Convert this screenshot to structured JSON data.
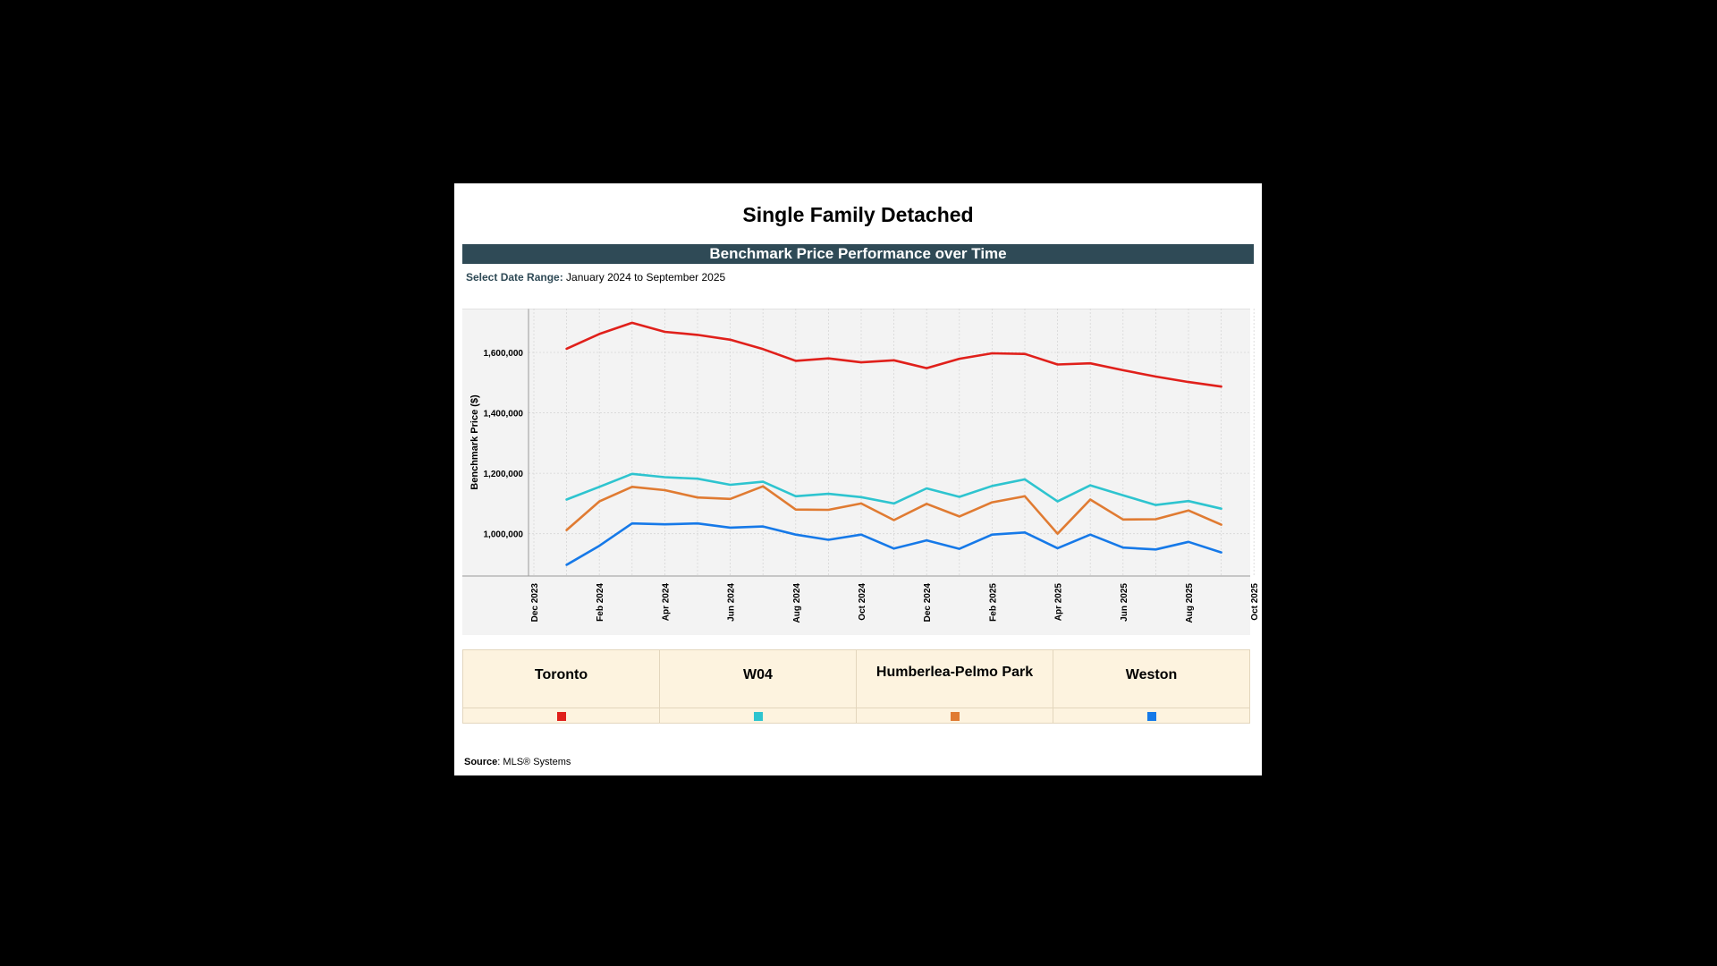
{
  "page_title": "Single Family Detached",
  "banner": "Benchmark Price Performance over Time",
  "date_range": {
    "label": "Select Date Range:",
    "value": "January 2024 to September 2025"
  },
  "source": {
    "label": "Source",
    "value": ": MLS® Systems"
  },
  "chart_data": {
    "type": "line",
    "title": "Benchmark Price Performance over Time",
    "ylabel": "Benchmark Price ($)",
    "xlabel": "",
    "ylim": [
      860000,
      1745000
    ],
    "yticks": [
      1000000,
      1200000,
      1400000,
      1600000
    ],
    "ytick_labels": [
      "1,000,000",
      "1,200,000",
      "1,400,000",
      "1,600,000"
    ],
    "x_tick_labels": [
      "Dec 2023",
      "Feb 2024",
      "Apr 2024",
      "Jun 2024",
      "Aug 2024",
      "Oct 2024",
      "Dec 2024",
      "Feb 2025",
      "Apr 2025",
      "Jun 2025",
      "Aug 2025",
      "Oct 2025"
    ],
    "x_months": [
      "Jan 2024",
      "Feb 2024",
      "Mar 2024",
      "Apr 2024",
      "May 2024",
      "Jun 2024",
      "Jul 2024",
      "Aug 2024",
      "Sep 2024",
      "Oct 2024",
      "Nov 2024",
      "Dec 2024",
      "Jan 2025",
      "Feb 2025",
      "Mar 2025",
      "Apr 2025",
      "May 2025",
      "Jun 2025",
      "Jul 2025",
      "Aug 2025",
      "Sep 2025"
    ],
    "grid": true,
    "series": [
      {
        "name": "Toronto",
        "color": "#e0201b",
        "values": [
          1612000,
          1661000,
          1698000,
          1668000,
          1658000,
          1642000,
          1611000,
          1572000,
          1580000,
          1567000,
          1574000,
          1548000,
          1579000,
          1597000,
          1595000,
          1560000,
          1564000,
          1541000,
          1520000,
          1502000,
          1487000
        ]
      },
      {
        "name": "W04",
        "color": "#2ec4cf",
        "values": [
          1113000,
          1155000,
          1198000,
          1187000,
          1182000,
          1162000,
          1172000,
          1124000,
          1132000,
          1121000,
          1100000,
          1150000,
          1122000,
          1158000,
          1180000,
          1107000,
          1160000,
          1127000,
          1095000,
          1108000,
          1083000
        ]
      },
      {
        "name": "Humberlea-Pelmo Park",
        "color": "#e07b32",
        "values": [
          1012000,
          1107000,
          1155000,
          1144000,
          1120000,
          1115000,
          1157000,
          1080000,
          1079000,
          1100000,
          1045000,
          1099000,
          1057000,
          1104000,
          1124000,
          1000000,
          1113000,
          1047000,
          1048000,
          1077000,
          1030000
        ]
      },
      {
        "name": "Weston",
        "color": "#1679e8",
        "values": [
          897000,
          960000,
          1034000,
          1031000,
          1034000,
          1020000,
          1024000,
          997000,
          980000,
          997000,
          951000,
          978000,
          950000,
          997000,
          1004000,
          952000,
          997000,
          954000,
          948000,
          973000,
          938000
        ]
      }
    ]
  },
  "legend": [
    {
      "name": "Toronto",
      "color": "#e0201b"
    },
    {
      "name": "W04",
      "color": "#2ec4cf"
    },
    {
      "name": "Humberlea-Pelmo Park",
      "color": "#e07b32"
    },
    {
      "name": "Weston",
      "color": "#1679e8"
    }
  ]
}
